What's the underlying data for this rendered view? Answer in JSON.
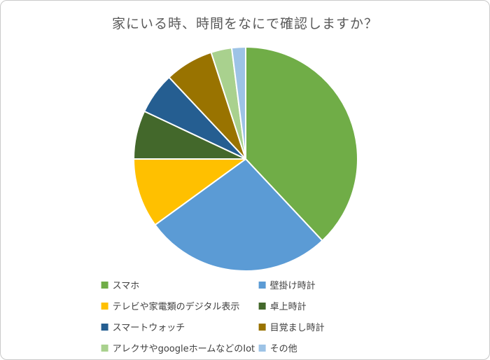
{
  "chart_data": {
    "type": "pie",
    "title": "家にいる時、時間をなにで確認しますか？",
    "categories": [
      "スマホ",
      "壁掛け時計",
      "テレビや家電類のデジタル表示",
      "卓上時計",
      "スマートウォッチ",
      "目覚まし時計",
      "アレクサやgoogleホームなどのIot",
      "その他"
    ],
    "values": [
      38,
      27,
      10,
      7,
      6,
      7,
      3,
      2
    ],
    "unit": "percent",
    "colors": [
      "#70AD47",
      "#5B9BD5",
      "#FFC000",
      "#43682B",
      "#255E91",
      "#997300",
      "#A9D18E",
      "#9DC3E6"
    ],
    "start_angle_deg": 0,
    "direction": "clockwise",
    "legend_position": "bottom",
    "title_color": "#595959",
    "slice_border_color": "#ffffff"
  }
}
